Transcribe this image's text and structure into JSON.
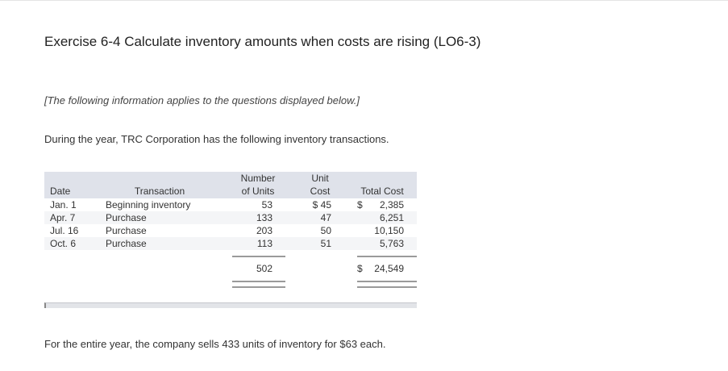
{
  "title": "Exercise 6-4 Calculate inventory amounts when costs are rising (LO6-3)",
  "note": "[The following information applies to the questions displayed below.]",
  "intro": "During the year, TRC Corporation has the following inventory transactions.",
  "table": {
    "headers": {
      "date": [
        "Date"
      ],
      "transaction": [
        "Transaction"
      ],
      "units": [
        "Number",
        "of Units"
      ],
      "unit_cost": [
        "Unit",
        "Cost"
      ],
      "total_cost": [
        "Total Cost"
      ]
    },
    "rows": [
      {
        "date": "Jan. 1",
        "transaction": "Beginning inventory",
        "units": "53",
        "unit_cost": "$ 45",
        "total_currency": "$",
        "total_cost": "2,385"
      },
      {
        "date": "Apr. 7",
        "transaction": "Purchase",
        "units": "133",
        "unit_cost": "47",
        "total_cost": "6,251"
      },
      {
        "date": "Jul. 16",
        "transaction": "Purchase",
        "units": "203",
        "unit_cost": "50",
        "total_cost": "10,150"
      },
      {
        "date": "Oct. 6",
        "transaction": "Purchase",
        "units": "113",
        "unit_cost": "51",
        "total_cost": "5,763"
      }
    ],
    "totals": {
      "units": "502",
      "total_currency": "$",
      "total_cost": "24,549"
    }
  },
  "closing": "For the entire year, the company sells 433 units of inventory for $63 each."
}
